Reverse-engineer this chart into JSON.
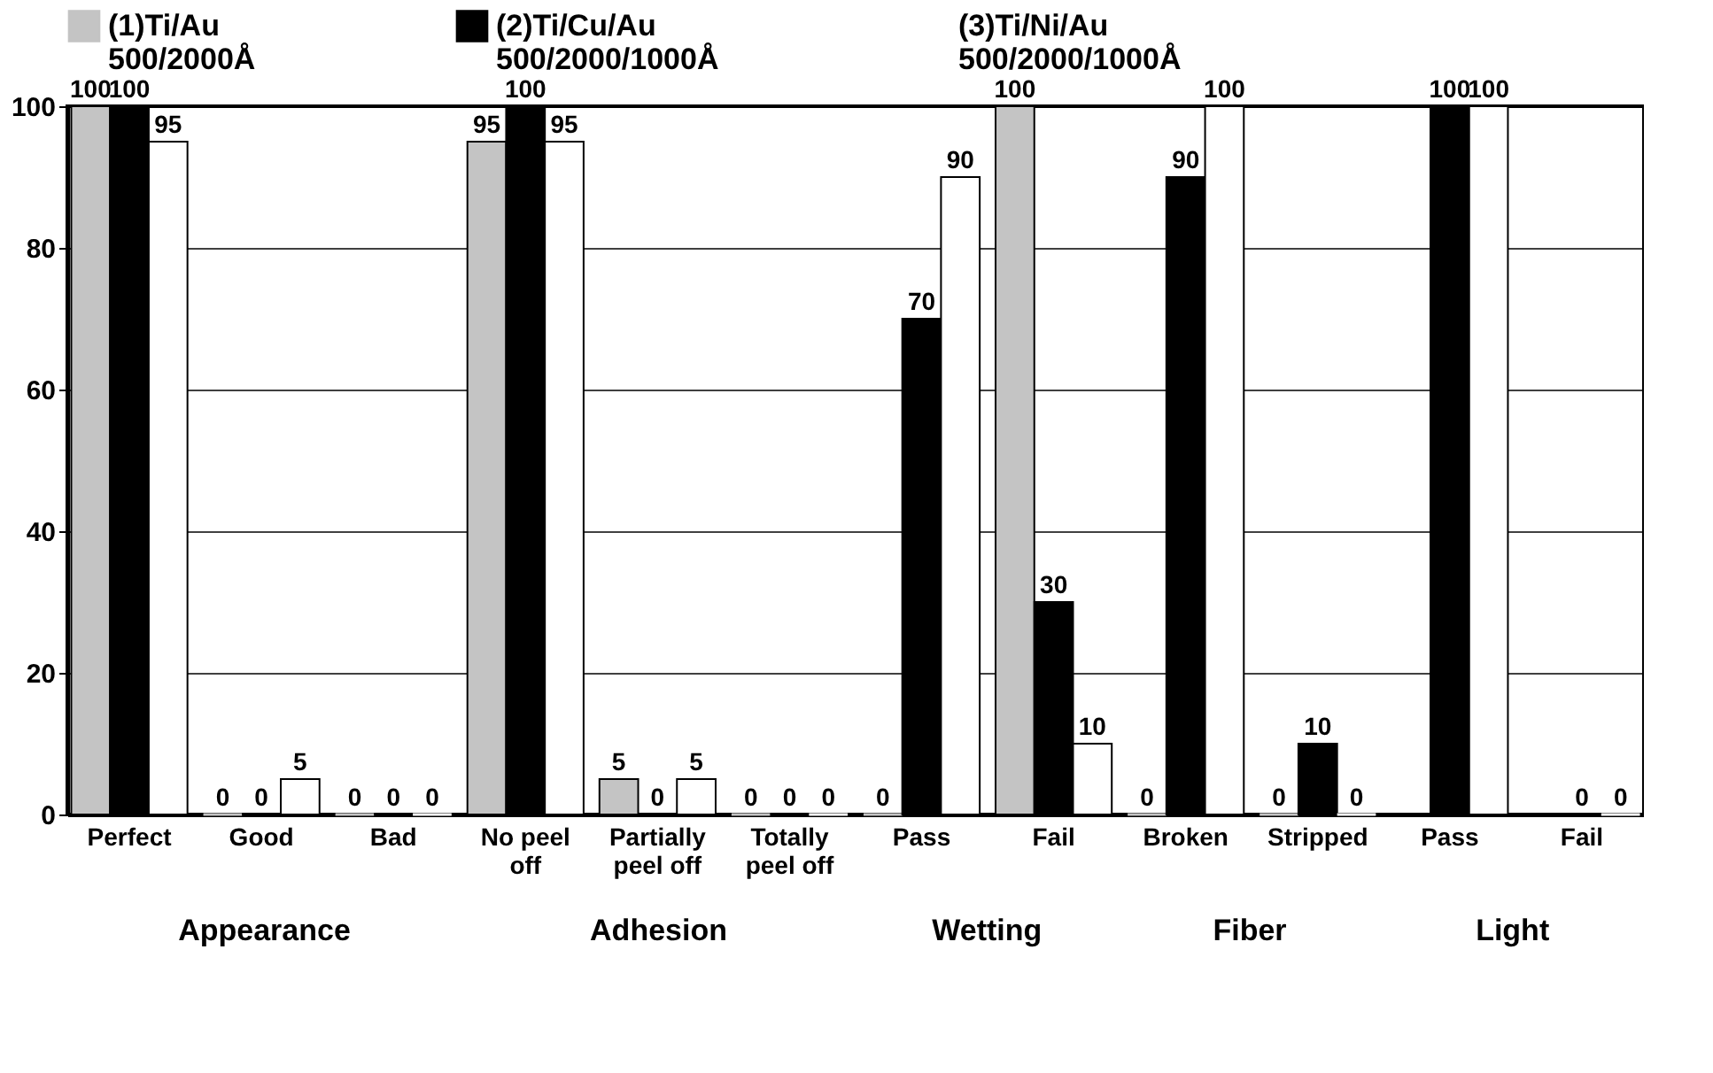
{
  "chart_data": {
    "type": "bar",
    "categories": [
      "Perfect",
      "Good",
      "Bad",
      "No peel off",
      "Partially peel off",
      "Totally peel off",
      "Pass",
      "Fail",
      "Broken",
      "Stripped",
      "Pass",
      "Fail"
    ],
    "series": [
      {
        "name": "(1)Ti/Au 500/2000Å",
        "color": "#c4c4c4",
        "values": [
          100,
          0,
          0,
          95,
          5,
          0,
          0,
          100,
          0,
          0,
          null,
          null
        ]
      },
      {
        "name": "(2)Ti/Cu/Au 500/2000/1000Å",
        "color": "#000000",
        "values": [
          100,
          0,
          0,
          100,
          0,
          0,
          70,
          30,
          90,
          10,
          100,
          0
        ]
      },
      {
        "name": "(3)Ti/Ni/Au 500/2000/1000Å",
        "color": "#ffffff",
        "values": [
          95,
          5,
          0,
          95,
          5,
          0,
          90,
          10,
          100,
          0,
          100,
          0
        ]
      }
    ],
    "annotations": [
      "Appearance",
      "Adhesion",
      "Wetting",
      "Fiber",
      "Light"
    ],
    "ylim": [
      0,
      100
    ],
    "yticks": [
      0,
      20,
      40,
      60,
      80,
      100
    ],
    "grid": "y",
    "legend": "top",
    "data_labels": true
  }
}
